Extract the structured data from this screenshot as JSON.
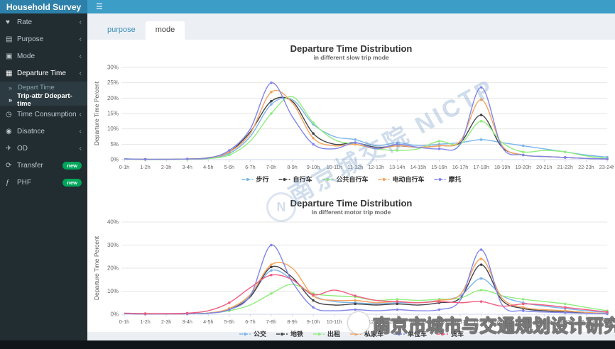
{
  "header": {
    "title": "Household Survey",
    "menu_icon": "☰"
  },
  "sidebar": {
    "items": [
      {
        "label": "Rate",
        "icon": "♥",
        "icon_name": "heart-icon",
        "chevron": "‹"
      },
      {
        "label": "Purpose",
        "icon": "▤",
        "icon_name": "briefcase-icon",
        "chevron": "‹"
      },
      {
        "label": "Mode",
        "icon": "▣",
        "icon_name": "bus-icon",
        "chevron": "‹"
      },
      {
        "label": "Departure Time",
        "icon": "▦",
        "icon_name": "calendar-icon",
        "chevron": "‹",
        "open": true,
        "children": [
          {
            "label": "Depart Time",
            "active": false
          },
          {
            "label": "Trip-attr Ddepart-time",
            "active": true
          }
        ]
      },
      {
        "label": "Time Consumption",
        "icon": "◷",
        "icon_name": "clock-icon",
        "chevron": "‹"
      },
      {
        "label": "Disatnce",
        "icon": "◉",
        "icon_name": "map-marker-icon",
        "chevron": "‹"
      },
      {
        "label": "OD",
        "icon": "✈",
        "icon_name": "plane-icon",
        "chevron": "‹"
      },
      {
        "label": "Transfer",
        "icon": "⟳",
        "icon_name": "refresh-icon",
        "badge": "new"
      },
      {
        "label": "PHF",
        "icon": "ƒ",
        "icon_name": "function-icon",
        "badge": "new"
      }
    ],
    "badge_color": "#00a65a"
  },
  "tabs": [
    {
      "label": "purpose",
      "active": false
    },
    {
      "label": "mode",
      "active": true
    }
  ],
  "watermarks": {
    "diagonal": "南京城交院 NICTP",
    "seal_letter": "N",
    "footer": "南京市城市与交通规划设计研究院"
  },
  "chart_data": [
    {
      "type": "line",
      "title": "Departure Time Distribution",
      "subtitle": "in different slow trip mode",
      "ylabel": "Departure Time Percent",
      "ylim": [
        0,
        30
      ],
      "ytick_step": 5,
      "ytick_suffix": "%",
      "grid": true,
      "legend_position": "bottom",
      "categories": [
        "0-1h",
        "1-2h",
        "2-3h",
        "3-4h",
        "4-5h",
        "5-6h",
        "6-7h",
        "7-8h",
        "8-9h",
        "9-10h",
        "10-11h",
        "11-12h",
        "12-13h",
        "13-14h",
        "14-15h",
        "15-16h",
        "16-17h",
        "17-18h",
        "18-19h",
        "19-20h",
        "20-21h",
        "21-22h",
        "22-23h",
        "23-24h"
      ],
      "series": [
        {
          "name": "步行",
          "color": "#7cb5ec",
          "values": [
            0.3,
            0.1,
            0.1,
            0.2,
            0.5,
            2,
            7.5,
            18,
            19.5,
            11.5,
            7.5,
            6.5,
            4.5,
            5.5,
            4.5,
            5,
            5.5,
            6.5,
            5.5,
            4.5,
            3.5,
            2.5,
            1.5,
            0.8
          ]
        },
        {
          "name": "自行车",
          "color": "#434348",
          "values": [
            0.2,
            0.1,
            0.1,
            0.2,
            0.6,
            2.5,
            9,
            19,
            19,
            8.5,
            5,
            5.5,
            4,
            4.5,
            4,
            4.5,
            5.5,
            14.5,
            4,
            1.5,
            1,
            0.7,
            0.4,
            0.2
          ]
        },
        {
          "name": "公共自行车",
          "color": "#90ed7d",
          "values": [
            0.1,
            0,
            0,
            0.1,
            0.3,
            1.5,
            6,
            15,
            20.5,
            12,
            6.5,
            5,
            3.5,
            3,
            3.5,
            6,
            5,
            12.5,
            5.5,
            2.5,
            3,
            2.5,
            1.2,
            0.4
          ]
        },
        {
          "name": "电动自行车",
          "color": "#f7a35c",
          "values": [
            0.2,
            0.1,
            0.1,
            0.2,
            0.5,
            2.5,
            8.5,
            22,
            18.5,
            7,
            4.5,
            5,
            3.5,
            4.5,
            4,
            4.5,
            6,
            19.5,
            4.5,
            1.5,
            1,
            0.7,
            0.4,
            0.2
          ]
        },
        {
          "name": "摩托",
          "color": "#8085e9",
          "values": [
            0.2,
            0.1,
            0.1,
            0.2,
            0.5,
            3,
            10,
            25,
            14,
            5,
            3.5,
            5.5,
            3.5,
            5,
            4,
            3.5,
            5,
            23.5,
            4,
            1.5,
            1,
            0.7,
            0.4,
            0.2
          ]
        }
      ]
    },
    {
      "type": "line",
      "title": "Departure Time Distribution",
      "subtitle": "in different motor trip mode",
      "ylabel": "Departure Time Percent",
      "ylim": [
        0,
        40
      ],
      "ytick_step": 10,
      "ytick_suffix": "%",
      "grid": true,
      "legend_position": "bottom",
      "categories": [
        "0-1h",
        "1-2h",
        "2-3h",
        "3-4h",
        "4-5h",
        "5-6h",
        "6-7h",
        "7-8h",
        "8-9h",
        "9-10h",
        "10-11h",
        "11-12h",
        "12-13h",
        "13-14h",
        "14-15h",
        "15-16h",
        "16-17h",
        "17-18h",
        "18-19h",
        "19-20h",
        "20-21h",
        "21-22h",
        "22-23h",
        "23-24h"
      ],
      "series": [
        {
          "name": "公交",
          "color": "#7cb5ec",
          "values": [
            0.3,
            0.1,
            0.1,
            0.2,
            0.5,
            2,
            8,
            19,
            15,
            8,
            5.5,
            5,
            4.5,
            5,
            5,
            6,
            8,
            15.5,
            8,
            5,
            3.5,
            2.5,
            1.5,
            0.8
          ]
        },
        {
          "name": "地铁",
          "color": "#434348",
          "values": [
            0.3,
            0.1,
            0.1,
            0.2,
            0.5,
            2,
            7.5,
            20.5,
            16,
            6,
            4,
            4.5,
            4,
            4.5,
            4,
            5,
            7,
            21.5,
            6,
            2.5,
            1.5,
            1,
            0.6,
            0.3
          ]
        },
        {
          "name": "出租",
          "color": "#90ed7d",
          "values": [
            0.5,
            0.3,
            0.2,
            0.3,
            0.5,
            1.5,
            4,
            9,
            13,
            9,
            8,
            7.5,
            6,
            6.5,
            6,
            6.5,
            7,
            10.5,
            8,
            6.5,
            5.5,
            4.5,
            3,
            1.5
          ]
        },
        {
          "name": "私家车",
          "color": "#f7a35c",
          "values": [
            0.3,
            0.1,
            0.1,
            0.2,
            0.5,
            2.5,
            8.5,
            21.5,
            20,
            8,
            6,
            6,
            5,
            5.5,
            5,
            6,
            8.5,
            24,
            7,
            3,
            2,
            1.5,
            0.8,
            0.4
          ]
        },
        {
          "name": "单位车",
          "color": "#8085e9",
          "values": [
            0.2,
            0.1,
            0.1,
            0.2,
            0.4,
            2,
            8,
            30,
            14,
            3,
            1.5,
            2,
            1.5,
            2,
            1.5,
            2,
            6,
            28,
            4,
            1.5,
            1,
            0.7,
            0.4,
            0.2
          ]
        },
        {
          "name": "货车",
          "color": "#f15c80",
          "values": [
            0.5,
            0.3,
            0.3,
            0.5,
            1.5,
            5,
            11.5,
            17,
            15,
            8.5,
            10.5,
            8,
            6,
            5.5,
            5,
            5.5,
            5,
            5.5,
            3.5,
            4.5,
            4,
            3,
            2,
            1
          ]
        }
      ]
    }
  ]
}
